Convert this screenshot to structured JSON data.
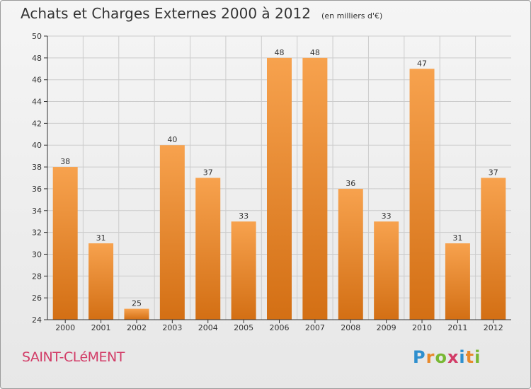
{
  "title": "Achats et Charges Externes 2000 à 2012",
  "unit": "(en milliers d'€)",
  "commune": "SAINT-CLéMENT",
  "logo": {
    "letters": [
      "P",
      "r",
      "o",
      "x",
      "i",
      "t",
      "i"
    ],
    "colors": [
      "#2e8fce",
      "#e8892b",
      "#78b833",
      "#d23c67",
      "#2e8fce",
      "#e8892b",
      "#78b833"
    ]
  },
  "chart_data": {
    "type": "bar",
    "categories": [
      "2000",
      "2001",
      "2002",
      "2003",
      "2004",
      "2005",
      "2006",
      "2007",
      "2008",
      "2009",
      "2010",
      "2011",
      "2012"
    ],
    "values": [
      38,
      31,
      25,
      40,
      37,
      33,
      48,
      48,
      36,
      33,
      47,
      31,
      37
    ],
    "ylim": [
      24,
      50
    ],
    "yticks": [
      24,
      26,
      28,
      30,
      32,
      34,
      36,
      38,
      40,
      42,
      44,
      46,
      48,
      50
    ],
    "grid": true,
    "colors": {
      "bar_light": "#f7a24e",
      "bar_dark": "#d36f14",
      "grid": "#cccccc",
      "axis": "#333333"
    }
  }
}
